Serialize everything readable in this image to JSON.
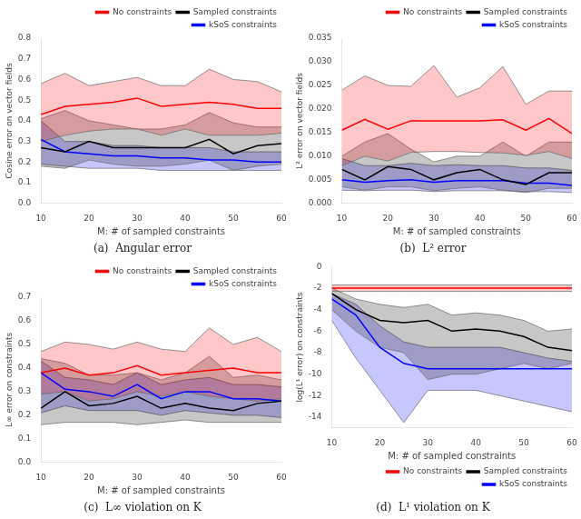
{
  "chart_data": [
    {
      "type": "line",
      "title": "(a)  Angular error",
      "xlabel": "M: # of sampled constraints",
      "ylabel": "Cosine error on vector fields",
      "x": [
        10,
        15,
        20,
        25,
        30,
        35,
        40,
        45,
        50,
        55,
        60
      ],
      "xlim": [
        10,
        60
      ],
      "xticks": [
        10,
        20,
        30,
        40,
        50,
        60
      ],
      "ylim": [
        0,
        0.8
      ],
      "yticks": [
        {
          "value": 0,
          "label": "0.0"
        },
        0.1,
        0.2,
        0.3,
        0.4,
        0.5,
        0.6,
        0.7,
        0.8
      ],
      "grid": false,
      "legend": "upper right",
      "series": [
        {
          "name": "No constraints",
          "color": "#ff0000",
          "values": [
            0.43,
            0.47,
            0.48,
            0.49,
            0.51,
            0.47,
            0.48,
            0.49,
            0.48,
            0.46,
            0.46
          ],
          "upper": [
            0.58,
            0.63,
            0.57,
            0.59,
            0.61,
            0.57,
            0.57,
            0.65,
            0.6,
            0.59,
            0.54
          ],
          "lower": [
            0.3,
            0.33,
            0.35,
            0.36,
            0.36,
            0.33,
            0.36,
            0.33,
            0.33,
            0.33,
            0.34
          ]
        },
        {
          "name": "Sampled constraints",
          "color": "#000000",
          "values": [
            0.27,
            0.25,
            0.3,
            0.27,
            0.27,
            0.27,
            0.27,
            0.31,
            0.24,
            0.28,
            0.29
          ],
          "upper": [
            0.41,
            0.45,
            0.4,
            0.38,
            0.36,
            0.36,
            0.38,
            0.44,
            0.39,
            0.37,
            0.37
          ],
          "lower": [
            0.18,
            0.17,
            0.21,
            0.19,
            0.18,
            0.18,
            0.19,
            0.21,
            0.16,
            0.18,
            0.19
          ]
        },
        {
          "name": "kSoS constraints",
          "color": "#0000ff",
          "values": [
            0.31,
            0.25,
            0.24,
            0.23,
            0.23,
            0.22,
            0.22,
            0.21,
            0.21,
            0.2,
            0.2
          ],
          "upper": [
            0.4,
            0.3,
            0.3,
            0.28,
            0.28,
            0.27,
            0.27,
            0.27,
            0.25,
            0.25,
            0.25
          ],
          "lower": [
            0.19,
            0.18,
            0.17,
            0.17,
            0.17,
            0.16,
            0.16,
            0.16,
            0.16,
            0.16,
            0.16
          ]
        }
      ]
    },
    {
      "type": "line",
      "title": "(b)  L² error",
      "xlabel": "M: # of sampled constraints",
      "ylabel": "L² error on vector fields",
      "x": [
        10,
        15,
        20,
        25,
        30,
        35,
        40,
        45,
        50,
        55,
        60
      ],
      "xlim": [
        10,
        60
      ],
      "xticks": [
        10,
        20,
        30,
        40,
        50,
        60
      ],
      "ylim": [
        0,
        0.035
      ],
      "yticks": [
        {
          "value": 0,
          "label": "0.000"
        },
        0.005,
        {
          "value": 0.01,
          "label": "0.010"
        },
        0.015,
        {
          "value": 0.02,
          "label": "0.020"
        },
        0.025,
        {
          "value": 0.03,
          "label": "0.030"
        },
        0.035
      ],
      "grid": false,
      "legend": "upper right",
      "series": [
        {
          "name": "No constraints",
          "color": "#ff0000",
          "values": [
            0.0155,
            0.0178,
            0.0157,
            0.0175,
            0.0175,
            0.0175,
            0.0175,
            0.0177,
            0.0155,
            0.018,
            0.0148
          ],
          "upper": [
            0.024,
            0.027,
            0.025,
            0.0248,
            0.0292,
            0.0225,
            0.0245,
            0.029,
            0.021,
            0.0238,
            0.0238
          ],
          "lower": [
            0.008,
            0.01,
            0.009,
            0.0108,
            0.011,
            0.011,
            0.0108,
            0.0107,
            0.0102,
            0.011,
            0.0095
          ]
        },
        {
          "name": "Sampled constraints",
          "color": "#000000",
          "values": [
            0.0072,
            0.005,
            0.0078,
            0.0072,
            0.005,
            0.0065,
            0.0072,
            0.005,
            0.004,
            0.0065,
            0.0065
          ],
          "upper": [
            0.01,
            0.013,
            0.0148,
            0.0115,
            0.0088,
            0.01,
            0.01,
            0.013,
            0.01,
            0.013,
            0.013
          ],
          "lower": [
            0.0035,
            0.0028,
            0.0035,
            0.0035,
            0.0027,
            0.0032,
            0.0035,
            0.0028,
            0.0023,
            0.0032,
            0.0032
          ]
        },
        {
          "name": "kSoS constraints",
          "color": "#0000ff",
          "values": [
            0.005,
            0.0045,
            0.0048,
            0.005,
            0.0045,
            0.0048,
            0.0048,
            0.0048,
            0.0043,
            0.0043,
            0.0038
          ],
          "upper": [
            0.0095,
            0.008,
            0.008,
            0.0085,
            0.008,
            0.0082,
            0.008,
            0.008,
            0.0075,
            0.0075,
            0.007
          ],
          "lower": [
            0.0028,
            0.0027,
            0.0028,
            0.0028,
            0.0025,
            0.0027,
            0.0027,
            0.0027,
            0.0025,
            0.0025,
            0.0023
          ]
        }
      ]
    },
    {
      "type": "line",
      "title": "(c)  L∞ violation on K",
      "xlabel": "M: # of sampled constraints",
      "ylabel": "L∞ error on constraints",
      "x": [
        10,
        15,
        20,
        25,
        30,
        35,
        40,
        45,
        50,
        55,
        60
      ],
      "xlim": [
        10,
        60
      ],
      "xticks": [
        10,
        20,
        30,
        40,
        50,
        60
      ],
      "ylim": [
        0,
        0.7
      ],
      "yticks": [
        {
          "value": 0,
          "label": "0.0"
        },
        0.1,
        0.2,
        0.3,
        0.4,
        0.5,
        0.6,
        0.7
      ],
      "grid": false,
      "legend": "upper right",
      "series": [
        {
          "name": "No constraints",
          "color": "#ff0000",
          "values": [
            0.38,
            0.4,
            0.37,
            0.38,
            0.41,
            0.37,
            0.38,
            0.39,
            0.4,
            0.38,
            0.38
          ],
          "upper": [
            0.47,
            0.51,
            0.5,
            0.48,
            0.51,
            0.48,
            0.47,
            0.57,
            0.5,
            0.53,
            0.47
          ],
          "lower": [
            0.29,
            0.3,
            0.26,
            0.27,
            0.3,
            0.28,
            0.3,
            0.28,
            0.27,
            0.26,
            0.27
          ]
        },
        {
          "name": "Sampled constraints",
          "color": "#000000",
          "values": [
            0.23,
            0.3,
            0.24,
            0.25,
            0.28,
            0.23,
            0.25,
            0.23,
            0.22,
            0.25,
            0.26
          ],
          "upper": [
            0.44,
            0.42,
            0.37,
            0.37,
            0.38,
            0.35,
            0.38,
            0.45,
            0.36,
            0.37,
            0.35
          ],
          "lower": [
            0.16,
            0.17,
            0.17,
            0.17,
            0.16,
            0.17,
            0.18,
            0.17,
            0.17,
            0.17,
            0.17
          ]
        },
        {
          "name": "kSoS constraints",
          "color": "#0000ff",
          "values": [
            0.38,
            0.31,
            0.3,
            0.28,
            0.33,
            0.27,
            0.3,
            0.3,
            0.27,
            0.27,
            0.26
          ],
          "upper": [
            0.43,
            0.36,
            0.35,
            0.33,
            0.38,
            0.33,
            0.35,
            0.36,
            0.33,
            0.33,
            0.32
          ],
          "lower": [
            0.21,
            0.24,
            0.22,
            0.22,
            0.22,
            0.2,
            0.22,
            0.21,
            0.2,
            0.2,
            0.19
          ]
        }
      ]
    },
    {
      "type": "line",
      "title": "(d)  L¹ violation on K",
      "xlabel": "M: # of sampled constraints",
      "ylabel": "log(L¹ error) on constraints",
      "x": [
        10,
        15,
        20,
        25,
        30,
        35,
        40,
        45,
        50,
        55,
        60
      ],
      "xlim": [
        10,
        60
      ],
      "xticks": [
        10,
        20,
        30,
        40,
        50,
        60
      ],
      "ylim": [
        -15,
        0
      ],
      "yticks": [
        -14,
        -12,
        -10,
        -8,
        -6,
        -4,
        -2,
        0
      ],
      "grid": false,
      "legend": "lower right",
      "series": [
        {
          "name": "No constraints",
          "color": "#ff0000",
          "values": [
            -2.0,
            -2.0,
            -2.0,
            -2.0,
            -2.0,
            -2.0,
            -2.0,
            -2.0,
            -2.0,
            -2.0,
            -2.0
          ],
          "upper": [
            -1.7,
            -1.7,
            -1.7,
            -1.7,
            -1.7,
            -1.7,
            -1.7,
            -1.7,
            -1.7,
            -1.7,
            -1.7
          ],
          "lower": [
            -2.3,
            -2.3,
            -2.3,
            -2.3,
            -2.3,
            -2.3,
            -2.3,
            -2.3,
            -2.3,
            -2.3,
            -2.3
          ]
        },
        {
          "name": "Sampled constraints",
          "color": "#000000",
          "values": [
            -2.5,
            -4.0,
            -5.0,
            -5.2,
            -5.0,
            -6.0,
            -5.8,
            -6.0,
            -6.5,
            -7.5,
            -7.8
          ],
          "upper": [
            -2.0,
            -3.0,
            -3.5,
            -3.8,
            -3.5,
            -4.5,
            -4.3,
            -4.5,
            -5.0,
            -6.0,
            -5.8
          ],
          "lower": [
            -4.0,
            -6.0,
            -7.5,
            -8.0,
            -10.5,
            -10.0,
            -10.0,
            -9.5,
            -9.0,
            -9.5,
            -9.0
          ]
        },
        {
          "name": "kSoS constraints",
          "color": "#0000ff",
          "values": [
            -3.0,
            -4.5,
            -7.5,
            -9.0,
            -9.5,
            -9.5,
            -9.5,
            -9.5,
            -9.5,
            -9.5,
            -9.5
          ],
          "upper": [
            -2.5,
            -3.5,
            -5.5,
            -7.0,
            -7.5,
            -7.5,
            -7.5,
            -7.5,
            -8.0,
            -8.5,
            -8.8
          ],
          "lower": [
            -5.0,
            -8.5,
            -11.5,
            -14.5,
            -11.5,
            -11.5,
            -11.5,
            -12.0,
            -12.5,
            -13.0,
            -13.5
          ]
        }
      ]
    }
  ]
}
